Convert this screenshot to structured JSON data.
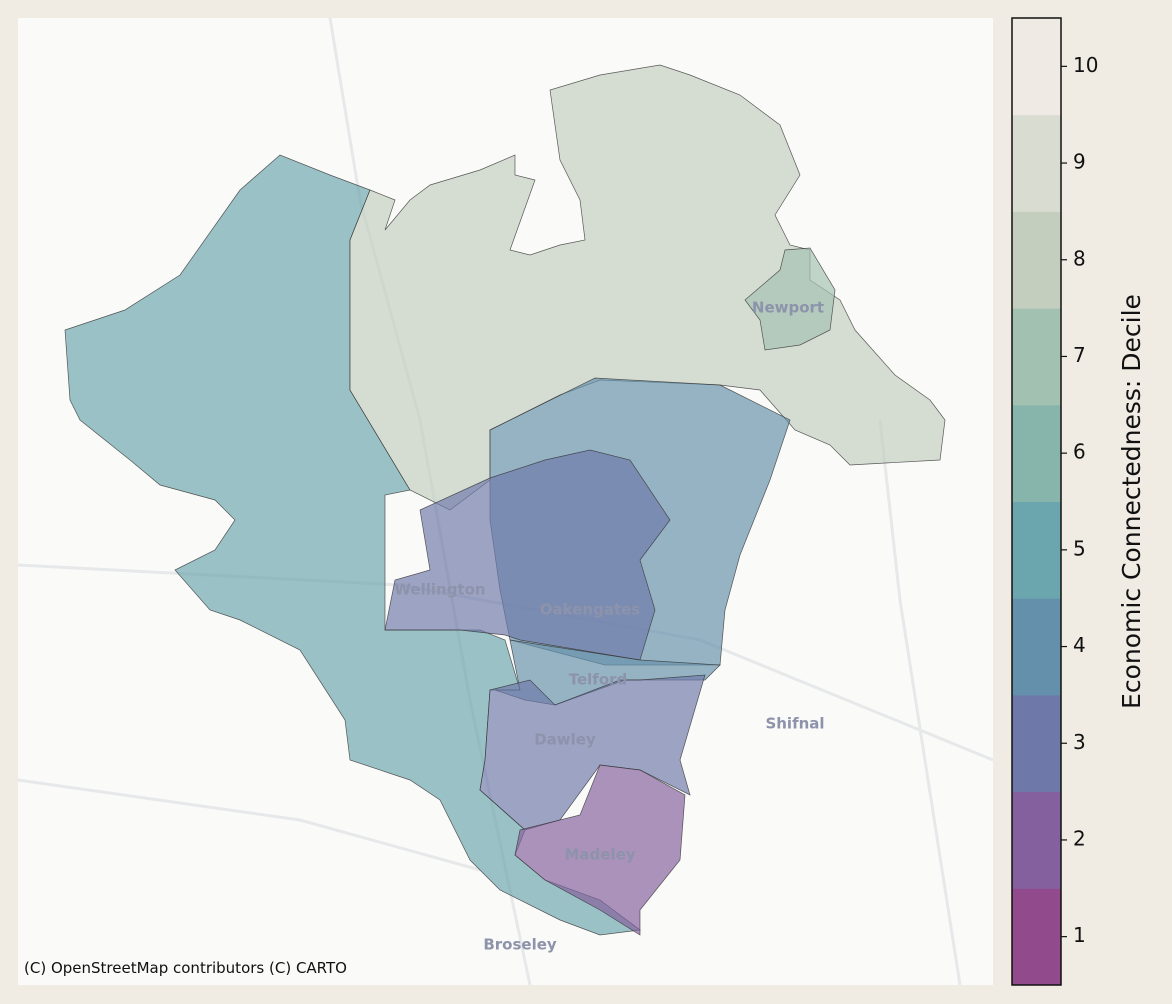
{
  "map": {
    "places": [
      "Newport",
      "Wellington",
      "Oakengates",
      "Telford",
      "Dawley",
      "Shifnal",
      "Madeley",
      "Broseley"
    ],
    "attribution": "(C) OpenStreetMap contributors (C) CARTO",
    "regions": [
      {
        "decile": 5
      },
      {
        "decile": 8
      },
      {
        "decile": 7
      },
      {
        "decile": 4
      },
      {
        "decile": 3
      },
      {
        "decile": 4
      },
      {
        "decile": 3
      },
      {
        "decile": 2
      }
    ],
    "colorbar": {
      "label": "Economic Connectedness: Decile",
      "ticks": [
        1,
        2,
        3,
        4,
        5,
        6,
        7,
        8,
        9,
        10
      ],
      "colors": [
        "#914a8c",
        "#84609e",
        "#6f79a9",
        "#6590ab",
        "#6ba5ad",
        "#88b5ab",
        "#a3c1b1",
        "#c3cebf",
        "#d9dcd0",
        "#efebe4"
      ]
    }
  }
}
